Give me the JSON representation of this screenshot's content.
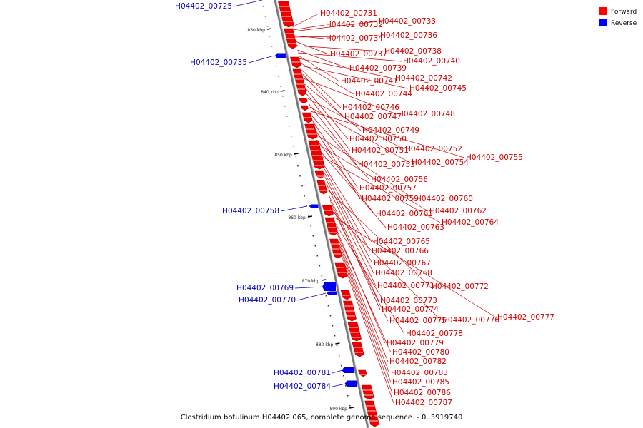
{
  "caption": "Clostridium botulinum H04402 065, complete genome sequence. - 0..3919740",
  "legend": [
    {
      "label": "Forward",
      "color": "#ff0000"
    },
    {
      "label": "Reverse",
      "color": "#0000ff"
    }
  ],
  "colors": {
    "forward": "#ee0000",
    "reverse": "#0000ee",
    "forward_text": "#cc0000",
    "reverse_text": "#0000bb",
    "axis": "#888888"
  },
  "ticks": [
    "830 kbp",
    "840 kbp",
    "850 kbp",
    "860 kbp",
    "870 kbp",
    "880 kbp",
    "890 kbp"
  ],
  "genes_forward": [
    "H04402_00731",
    "H04402_00732",
    "H04402_00733",
    "H04402_00734",
    "H04402_00736",
    "H04402_00737",
    "H04402_00738",
    "H04402_00739",
    "H04402_00740",
    "H04402_00741",
    "H04402_00742",
    "H04402_00744",
    "H04402_00745",
    "H04402_00746",
    "H04402_00747",
    "H04402_00748",
    "H04402_00749",
    "H04402_00750",
    "H04402_00751",
    "H04402_00752",
    "H04402_00753",
    "H04402_00754",
    "H04402_00755",
    "H04402_00756",
    "H04402_00757",
    "H04402_00759",
    "H04402_00760",
    "H04402_00761",
    "H04402_00762",
    "H04402_00763",
    "H04402_00764",
    "H04402_00765",
    "H04402_00766",
    "H04402_00767",
    "H04402_00768",
    "H04402_00771",
    "H04402_00772",
    "H04402_00773",
    "H04402_00774",
    "H04402_00775",
    "H04402_00776",
    "H04402_00777",
    "H04402_00778",
    "H04402_00779",
    "H04402_00780",
    "H04402_00782",
    "H04402_00783",
    "H04402_00785",
    "H04402_00786",
    "H04402_00787"
  ],
  "genes_reverse": [
    "H04402_00725",
    "H04402_00735",
    "H04402_00758",
    "H04402_00769",
    "H04402_00770",
    "H04402_00781",
    "H04402_00784"
  ]
}
